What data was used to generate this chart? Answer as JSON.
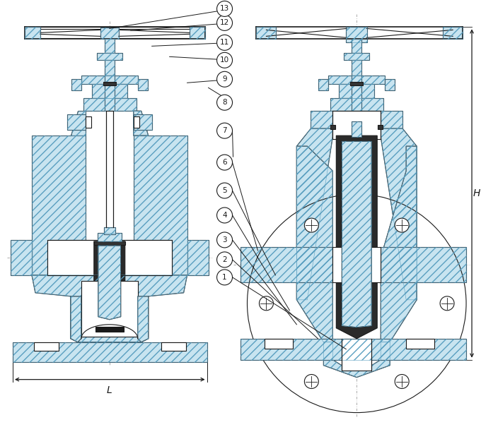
{
  "bg": "#ffffff",
  "lc": "#1a1a1a",
  "hf": "#c8e4f0",
  "hc": "#5a9fc0",
  "dk": "#1a1a1a",
  "gray": "#888888",
  "L_label": "L",
  "H_label": "H",
  "callouts": [
    1,
    2,
    3,
    4,
    5,
    6,
    7,
    8,
    9,
    10,
    11,
    12,
    13
  ]
}
